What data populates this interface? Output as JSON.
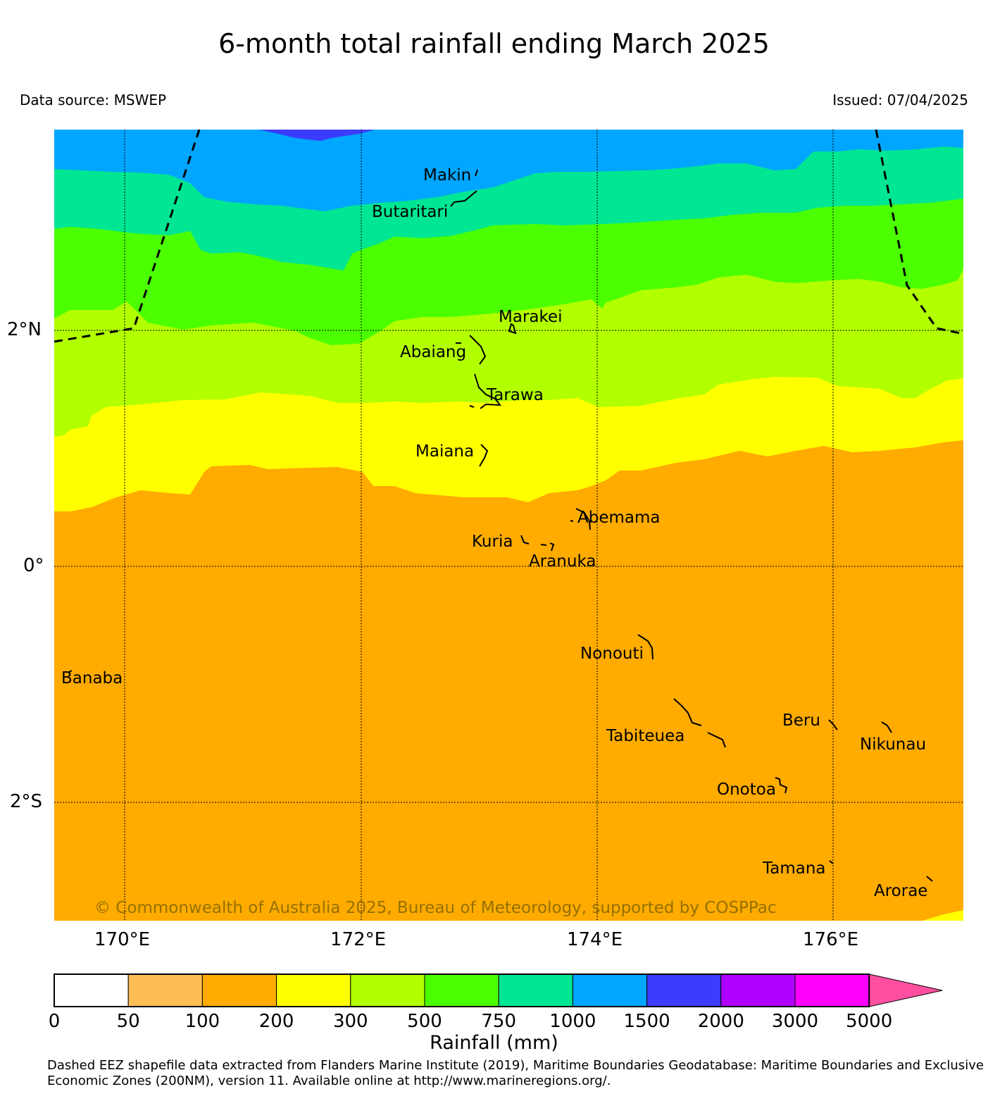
{
  "header": {
    "title": "6-month total rainfall ending March 2025",
    "data_source": "Data source: MSWEP",
    "issued": "Issued: 07/04/2025"
  },
  "map": {
    "lat_labels": [
      "2°N",
      "0°",
      "2°S"
    ],
    "lon_labels": [
      "170°E",
      "172°E",
      "174°E",
      "176°E"
    ],
    "places": {
      "makin": "Makin",
      "butaritari": "Butaritari",
      "marakei": "Marakei",
      "abaiang": "Abaiang",
      "tarawa": "Tarawa",
      "maiana": "Maiana",
      "abemama": "Abemama",
      "kuria": "Kuria",
      "aranuka": "Aranuka",
      "nonouti": "Nonouti",
      "banaba": "Banaba",
      "beru": "Beru",
      "tabiteuea": "Tabiteuea",
      "nikunau": "Nikunau",
      "onotoa": "Onotoa",
      "tamana": "Tamana",
      "arorae": "Arorae"
    },
    "copyright": "© Commonwealth of Australia 2025, Bureau of Meteorology, supported by COSPPac",
    "colors": {
      "band_1000_1500": "#00a6ff",
      "band_750_1000": "#00e692",
      "band_500_750": "#4cff00",
      "band_300_500": "#b2ff00",
      "band_200_300": "#ffff00",
      "band_100_200": "#ffab00",
      "band_1500_2000": "#3c3cff"
    }
  },
  "colorbar": {
    "title": "Rainfall (mm)",
    "ticks": [
      "0",
      "50",
      "100",
      "200",
      "300",
      "500",
      "750",
      "1000",
      "1500",
      "2000",
      "3000",
      "5000"
    ],
    "colors": [
      "#ffffff",
      "#ffbe55",
      "#ffab00",
      "#ffff00",
      "#b2ff00",
      "#4cff00",
      "#00e692",
      "#00a6ff",
      "#3c3cff",
      "#b000ff",
      "#ff00ff",
      "#ff4fa0"
    ]
  },
  "footnote": "Dashed EEZ shapefile data extracted from Flanders Marine Institute (2019), Maritime Boundaries Geodatabase: Maritime Boundaries and Exclusive Economic Zones (200NM), version 11. Available online at http://www.marineregions.org/."
}
